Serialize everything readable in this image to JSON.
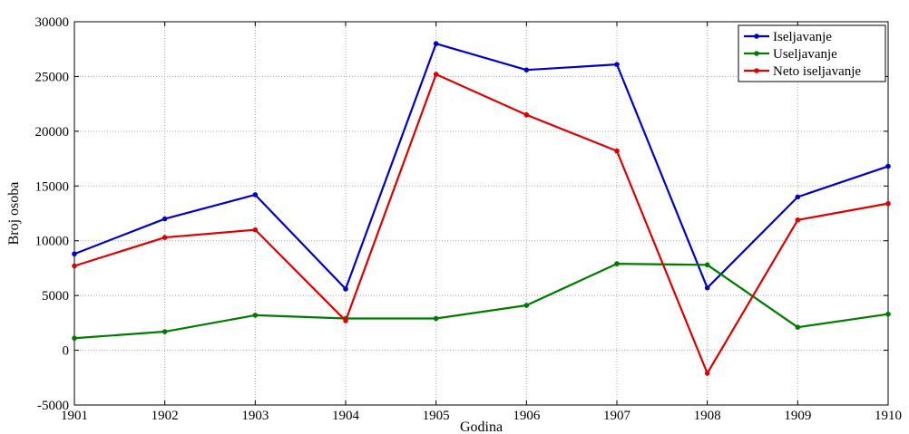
{
  "chart_data": {
    "type": "line",
    "xlabel": "Godina",
    "ylabel": "Broj osoba",
    "x": [
      1901,
      1902,
      1903,
      1904,
      1905,
      1906,
      1907,
      1908,
      1909,
      1910
    ],
    "xlim": [
      1901,
      1910
    ],
    "ylim": [
      -5000,
      30000
    ],
    "xticks": [
      "1901",
      "1902",
      "1903",
      "1904",
      "1905",
      "1906",
      "1907",
      "1908",
      "1909",
      "1910"
    ],
    "yticks": [
      "-5000",
      "0",
      "5000",
      "10000",
      "15000",
      "20000",
      "25000",
      "30000"
    ],
    "grid": true,
    "legend_position": "top-right",
    "series": [
      {
        "name": "Iseljavanje",
        "color": "#0000cc",
        "values": [
          8800,
          12000,
          14200,
          5600,
          28000,
          25600,
          26100,
          5700,
          14000,
          16800
        ]
      },
      {
        "name": "Useljavanje",
        "color": "#007a00",
        "values": [
          1100,
          1700,
          3200,
          2900,
          2900,
          4100,
          7900,
          7800,
          2100,
          3300
        ]
      },
      {
        "name": "Neto iseljavanje",
        "color": "#dd0000",
        "values": [
          7700,
          10300,
          11000,
          2700,
          25200,
          21500,
          18200,
          -2100,
          11900,
          13400
        ]
      }
    ]
  }
}
